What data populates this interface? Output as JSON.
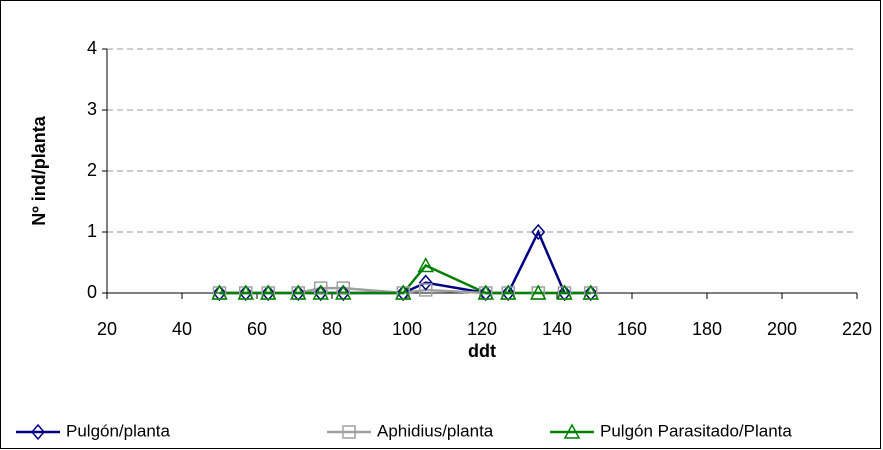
{
  "chart_data": {
    "type": "line",
    "x_label": "ddt",
    "y_label": "Nº ind/planta",
    "x": [
      50,
      57,
      63,
      71,
      77,
      83,
      99,
      105,
      121,
      127,
      135,
      142,
      149
    ],
    "series": [
      {
        "name": "Pulgón/planta",
        "color": "#000080",
        "marker": "diamond",
        "values": [
          0,
          0,
          0,
          0,
          0,
          0,
          0,
          0.17,
          0,
          0,
          1,
          0,
          0
        ]
      },
      {
        "name": "Aphidius/planta",
        "color": "#a0a0a0",
        "marker": "square",
        "values": [
          0,
          0,
          0,
          0,
          0.08,
          0.08,
          0,
          0.05,
          0,
          0,
          0,
          0,
          0
        ]
      },
      {
        "name": "Pulgón Parasitado/Planta",
        "color": "#008000",
        "marker": "triangle",
        "values": [
          0,
          0,
          0,
          0,
          0,
          0,
          0,
          0.45,
          0,
          0,
          0,
          0,
          0
        ]
      }
    ],
    "xlim": [
      20,
      220
    ],
    "xticks": [
      20,
      40,
      60,
      80,
      100,
      120,
      140,
      160,
      180,
      200,
      220
    ],
    "ylim": [
      0,
      4
    ],
    "yticks": [
      0,
      1,
      2,
      3,
      4
    ],
    "grid": true,
    "legend": "bottom"
  }
}
